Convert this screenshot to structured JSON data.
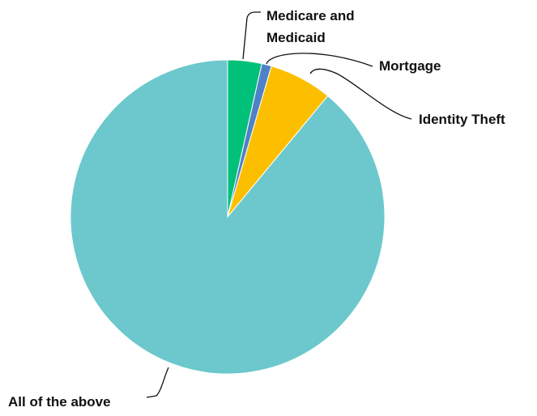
{
  "chart_data": {
    "type": "pie",
    "title": "",
    "categories": [
      "Medicare and Medicaid",
      "Mortgage",
      "Identity Theft",
      "All of the above"
    ],
    "values": [
      3.5,
      1.0,
      6.5,
      89.0
    ],
    "unit": "percent (estimated)",
    "colors": [
      "#00c07a",
      "#4e81c6",
      "#fbbf00",
      "#6cc8cc"
    ],
    "legend": "none",
    "labels": [
      {
        "lines": [
          "Medicare and",
          "Medicaid"
        ]
      },
      {
        "lines": [
          "Mortgage"
        ]
      },
      {
        "lines": [
          "Identity Theft"
        ]
      },
      {
        "lines": [
          "All of the above"
        ]
      }
    ]
  }
}
